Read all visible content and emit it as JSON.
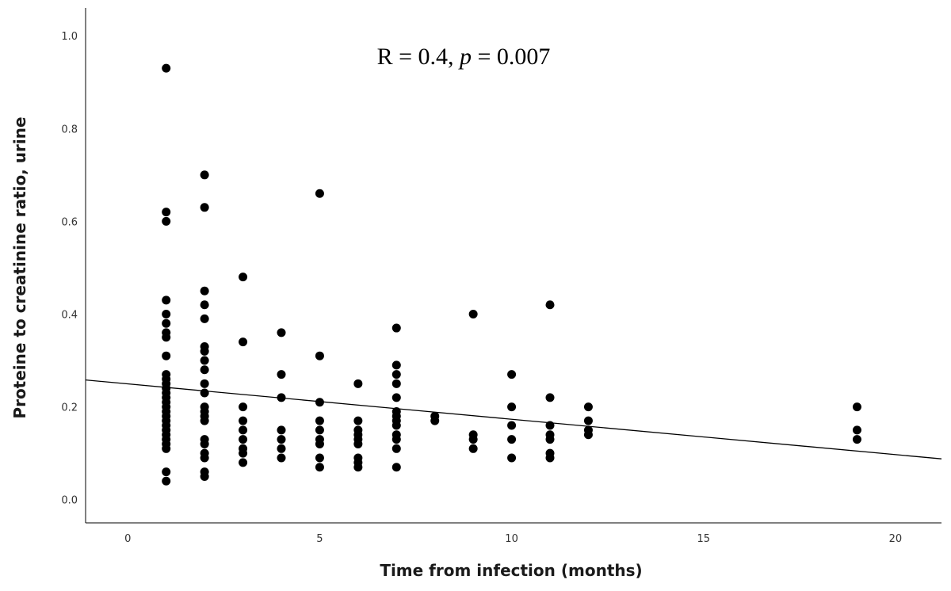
{
  "chart_data": {
    "type": "scatter",
    "title": "",
    "annotation": {
      "r_text": "R = 0.4, ",
      "p_symbol": "p",
      "p_text": " = 0.007"
    },
    "xlabel": "Time from infection (months)",
    "ylabel": "Proteine to creatinine ratio, urine",
    "xlim": [
      -1.1,
      21.2
    ],
    "ylim": [
      -0.05,
      1.06
    ],
    "xticks": [
      0,
      5,
      10,
      15,
      20
    ],
    "yticks": [
      0.0,
      0.2,
      0.4,
      0.6,
      0.8,
      1.0
    ],
    "xtick_labels": [
      "0",
      "5",
      "10",
      "15",
      "20"
    ],
    "ytick_labels": [
      "0.0",
      "0.2",
      "0.4",
      "0.6",
      "0.8",
      "1.0"
    ],
    "grid": false,
    "legend": "none",
    "marker_color": "#000000",
    "points": [
      [
        1,
        0.93
      ],
      [
        1,
        0.62
      ],
      [
        1,
        0.6
      ],
      [
        1,
        0.43
      ],
      [
        1,
        0.4
      ],
      [
        1,
        0.38
      ],
      [
        1,
        0.36
      ],
      [
        1,
        0.35
      ],
      [
        1,
        0.31
      ],
      [
        1,
        0.27
      ],
      [
        1,
        0.26
      ],
      [
        1,
        0.25
      ],
      [
        1,
        0.24
      ],
      [
        1,
        0.23
      ],
      [
        1,
        0.22
      ],
      [
        1,
        0.21
      ],
      [
        1,
        0.2
      ],
      [
        1,
        0.19
      ],
      [
        1,
        0.18
      ],
      [
        1,
        0.17
      ],
      [
        1,
        0.16
      ],
      [
        1,
        0.15
      ],
      [
        1,
        0.14
      ],
      [
        1,
        0.13
      ],
      [
        1,
        0.12
      ],
      [
        1,
        0.11
      ],
      [
        1,
        0.06
      ],
      [
        1,
        0.04
      ],
      [
        2,
        0.7
      ],
      [
        2,
        0.63
      ],
      [
        2,
        0.45
      ],
      [
        2,
        0.42
      ],
      [
        2,
        0.39
      ],
      [
        2,
        0.33
      ],
      [
        2,
        0.32
      ],
      [
        2,
        0.3
      ],
      [
        2,
        0.28
      ],
      [
        2,
        0.25
      ],
      [
        2,
        0.23
      ],
      [
        2,
        0.2
      ],
      [
        2,
        0.19
      ],
      [
        2,
        0.18
      ],
      [
        2,
        0.17
      ],
      [
        2,
        0.13
      ],
      [
        2,
        0.12
      ],
      [
        2,
        0.1
      ],
      [
        2,
        0.09
      ],
      [
        2,
        0.06
      ],
      [
        2,
        0.05
      ],
      [
        3,
        0.48
      ],
      [
        3,
        0.34
      ],
      [
        3,
        0.2
      ],
      [
        3,
        0.17
      ],
      [
        3,
        0.15
      ],
      [
        3,
        0.13
      ],
      [
        3,
        0.11
      ],
      [
        3,
        0.1
      ],
      [
        3,
        0.08
      ],
      [
        4,
        0.36
      ],
      [
        4,
        0.27
      ],
      [
        4,
        0.22
      ],
      [
        4,
        0.15
      ],
      [
        4,
        0.13
      ],
      [
        4,
        0.11
      ],
      [
        4,
        0.09
      ],
      [
        5,
        0.66
      ],
      [
        5,
        0.31
      ],
      [
        5,
        0.21
      ],
      [
        5,
        0.17
      ],
      [
        5,
        0.15
      ],
      [
        5,
        0.13
      ],
      [
        5,
        0.12
      ],
      [
        5,
        0.09
      ],
      [
        5,
        0.07
      ],
      [
        6,
        0.25
      ],
      [
        6,
        0.17
      ],
      [
        6,
        0.15
      ],
      [
        6,
        0.14
      ],
      [
        6,
        0.13
      ],
      [
        6,
        0.12
      ],
      [
        6,
        0.09
      ],
      [
        6,
        0.08
      ],
      [
        6,
        0.07
      ],
      [
        7,
        0.37
      ],
      [
        7,
        0.29
      ],
      [
        7,
        0.27
      ],
      [
        7,
        0.25
      ],
      [
        7,
        0.22
      ],
      [
        7,
        0.19
      ],
      [
        7,
        0.18
      ],
      [
        7,
        0.17
      ],
      [
        7,
        0.16
      ],
      [
        7,
        0.14
      ],
      [
        7,
        0.13
      ],
      [
        7,
        0.11
      ],
      [
        7,
        0.07
      ],
      [
        8,
        0.18
      ],
      [
        8,
        0.17
      ],
      [
        9,
        0.4
      ],
      [
        9,
        0.14
      ],
      [
        9,
        0.13
      ],
      [
        9,
        0.11
      ],
      [
        10,
        0.27
      ],
      [
        10,
        0.2
      ],
      [
        10,
        0.16
      ],
      [
        10,
        0.13
      ],
      [
        10,
        0.09
      ],
      [
        11,
        0.42
      ],
      [
        11,
        0.22
      ],
      [
        11,
        0.16
      ],
      [
        11,
        0.14
      ],
      [
        11,
        0.13
      ],
      [
        11,
        0.1
      ],
      [
        11,
        0.09
      ],
      [
        12,
        0.2
      ],
      [
        12,
        0.17
      ],
      [
        12,
        0.15
      ],
      [
        12,
        0.14
      ],
      [
        19,
        0.2
      ],
      [
        19,
        0.15
      ],
      [
        19,
        0.13
      ]
    ],
    "fit_line": {
      "x": [
        -1.1,
        21.2
      ],
      "y": [
        0.258,
        0.088
      ]
    }
  }
}
